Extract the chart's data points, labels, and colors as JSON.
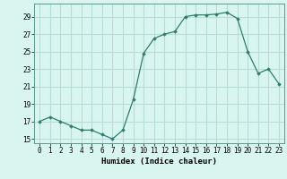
{
  "x": [
    0,
    1,
    2,
    3,
    4,
    5,
    6,
    7,
    8,
    9,
    10,
    11,
    12,
    13,
    14,
    15,
    16,
    17,
    18,
    19,
    20,
    21,
    22,
    23
  ],
  "y": [
    17,
    17.5,
    17,
    16.5,
    16,
    16,
    15.5,
    15,
    16,
    19.5,
    24.8,
    26.5,
    27,
    27.3,
    29,
    29.2,
    29.2,
    29.3,
    29.5,
    28.8,
    25,
    22.5,
    23,
    21.3
  ],
  "line_color": "#2e7d6e",
  "marker_color": "#2e7d6e",
  "bg_color": "#d8f5f0",
  "grid_color": "#b8ddd8",
  "xlabel": "Humidex (Indice chaleur)",
  "xlim": [
    -0.5,
    23.5
  ],
  "ylim": [
    14.5,
    30.5
  ],
  "yticks": [
    15,
    17,
    19,
    21,
    23,
    25,
    27,
    29
  ],
  "xticks": [
    0,
    1,
    2,
    3,
    4,
    5,
    6,
    7,
    8,
    9,
    10,
    11,
    12,
    13,
    14,
    15,
    16,
    17,
    18,
    19,
    20,
    21,
    22,
    23
  ],
  "tick_fontsize": 5.5,
  "xlabel_fontsize": 6.5
}
